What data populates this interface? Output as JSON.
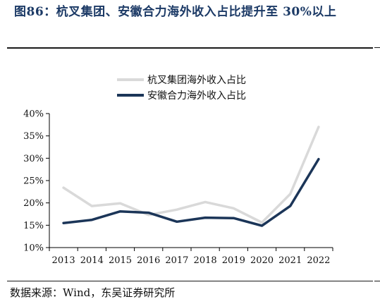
{
  "caption": {
    "text": "图86：杭叉集团、安徽合力海外收入占比提升至 30%以上"
  },
  "source": {
    "text": "数据来源：Wind，东吴证券研究所"
  },
  "chart_data": {
    "type": "line",
    "title": "",
    "xlabel": "",
    "ylabel": "",
    "x": [
      "2013",
      "2014",
      "2015",
      "2016",
      "2017",
      "2018",
      "2019",
      "2020",
      "2021",
      "2022"
    ],
    "ylim": [
      0.1,
      0.4
    ],
    "yticks": [
      0.1,
      0.15,
      0.2,
      0.25,
      0.3,
      0.35,
      0.4
    ],
    "ytick_labels": [
      "10%",
      "15%",
      "20%",
      "25%",
      "30%",
      "35%",
      "40%"
    ],
    "grid": false,
    "legend_position": "top-center",
    "series": [
      {
        "name": "杭叉集团海外收入占比",
        "color": "#d9d9d9",
        "values": [
          0.234,
          0.193,
          0.199,
          0.173,
          0.185,
          0.202,
          0.188,
          0.156,
          0.22,
          0.37
        ]
      },
      {
        "name": "安徽合力海外收入占比",
        "color": "#1b3558",
        "values": [
          0.155,
          0.162,
          0.181,
          0.178,
          0.158,
          0.167,
          0.166,
          0.149,
          0.193,
          0.298
        ]
      }
    ]
  }
}
